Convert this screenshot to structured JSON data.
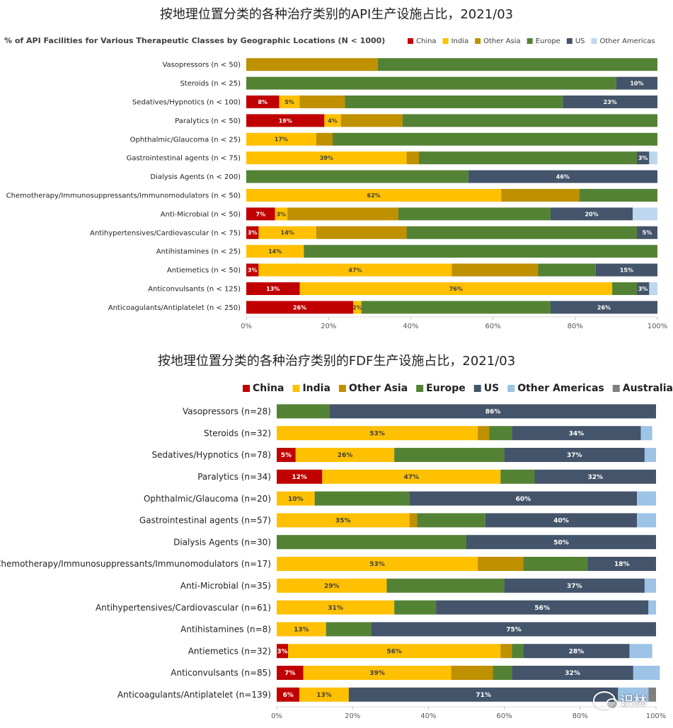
{
  "titles": {
    "api": "按地理位置分类的各种治疗类别的API生产设施占比，2021/03",
    "fdf": "按地理位置分类的各种治疗类别的FDF生产设施占比，2021/03"
  },
  "watermark": {
    "text": "识林"
  },
  "chart_data": [
    {
      "type": "bar",
      "orientation": "horizontal-stacked-100",
      "title": "% of API Facilities for Various Therapeutic Classes by Geographic Locations (N < 1000)",
      "legend_position": "top-right",
      "xlim": [
        0,
        100
      ],
      "x_ticks": [
        "0%",
        "20%",
        "40%",
        "60%",
        "80%",
        "100%"
      ],
      "categories": [
        "Vasopressors (n < 50)",
        "Steroids (n < 25)",
        "Sedatives/Hypnotics (n < 100)",
        "Paralytics (n < 50)",
        "Ophthalmic/Glaucoma (n < 25)",
        "Gastrointestinal agents (n < 75)",
        "Dialysis Agents (n < 200)",
        "Chemotherapy/Immunosuppressants/Immunomodulators (n < 50)",
        "Anti-Microbial (n < 50)",
        "Antihypertensives/Cardiovascular (n < 75)",
        "Antihistamines (n < 25)",
        "Antiemetics (n < 50)",
        "Anticonvulsants (n < 125)",
        "Anticoagulants/Antiplatelet (n < 250)"
      ],
      "series": [
        {
          "name": "China",
          "color": "#C00000",
          "values": [
            0,
            0,
            8,
            19,
            0,
            0,
            0,
            0,
            7,
            3,
            0,
            3,
            13,
            26
          ],
          "labels": [
            "",
            "",
            "8%",
            "19%",
            "",
            "",
            "",
            "",
            "7%",
            "3%",
            "",
            "3%",
            "13%",
            "26%"
          ]
        },
        {
          "name": "India",
          "color": "#FFC000",
          "values": [
            0,
            0,
            5,
            4,
            17,
            39,
            0,
            62,
            3,
            14,
            14,
            47,
            76,
            2
          ],
          "labels": [
            "",
            "",
            "5%",
            "4%",
            "17%",
            "39%",
            "",
            "62%",
            "3%",
            "14%",
            "14%",
            "47%",
            "76%",
            "2%"
          ]
        },
        {
          "name": "Other Asia",
          "color": "#BF9000",
          "values": [
            32,
            0,
            11,
            15,
            4,
            3,
            0,
            19,
            27,
            22,
            0,
            21,
            0,
            0
          ],
          "labels": [
            "",
            "",
            "",
            "",
            "",
            "",
            "",
            "",
            "",
            "",
            "",
            "",
            "",
            ""
          ]
        },
        {
          "name": "Europe",
          "color": "#548235",
          "values": [
            68,
            90,
            53,
            62,
            79,
            53,
            54,
            19,
            37,
            56,
            86,
            14,
            6,
            46
          ],
          "labels": [
            "",
            "",
            "",
            "",
            "",
            "",
            "",
            "",
            "",
            "",
            "",
            "",
            "",
            ""
          ]
        },
        {
          "name": "US",
          "color": "#44546A",
          "values": [
            0,
            10,
            23,
            0,
            0,
            3,
            46,
            0,
            20,
            5,
            0,
            15,
            3,
            26
          ],
          "labels": [
            "",
            "10%",
            "23%",
            "",
            "",
            "3%",
            "46%",
            "",
            "20%",
            "5%",
            "",
            "15%",
            "3%",
            "26%"
          ]
        },
        {
          "name": "Other Americas",
          "color": "#BDD7EE",
          "values": [
            0,
            0,
            0,
            0,
            0,
            2,
            0,
            0,
            6,
            0,
            0,
            0,
            2,
            0
          ],
          "labels": [
            "",
            "",
            "",
            "",
            "",
            "",
            "",
            "",
            "",
            "",
            "",
            "",
            "",
            ""
          ]
        }
      ]
    },
    {
      "type": "bar",
      "orientation": "horizontal-stacked-100",
      "title": "",
      "legend_position": "top",
      "xlim": [
        0,
        100
      ],
      "x_ticks": [
        "0%",
        "20%",
        "40%",
        "60%",
        "80%",
        "100%"
      ],
      "categories": [
        "Vasopressors (n=28)",
        "Steroids (n=32)",
        "Sedatives/Hypnotics (n=78)",
        "Paralytics (n=34)",
        "Ophthalmic/Glaucoma (n=20)",
        "Gastrointestinal agents (n=57)",
        "Dialysis Agents (n=30)",
        "Chemotherapy/Immunosuppressants/Immunomodulators (n=17)",
        "Anti-Microbial (n=35)",
        "Antihypertensives/Cardiovascular (n=61)",
        "Antihistamines (n=8)",
        "Antiemetics (n=32)",
        "Anticonvulsants (n=85)",
        "Anticoagulants/Antiplatelet (n=139)"
      ],
      "series": [
        {
          "name": "China",
          "color": "#C00000",
          "values": [
            0,
            0,
            5,
            12,
            0,
            0,
            0,
            0,
            0,
            0,
            0,
            3,
            7,
            6
          ],
          "labels": [
            "",
            "",
            "5%",
            "12%",
            "",
            "",
            "",
            "",
            "",
            "",
            "",
            "3%",
            "7%",
            "6%"
          ]
        },
        {
          "name": "India",
          "color": "#FFC000",
          "values": [
            0,
            53,
            26,
            47,
            10,
            35,
            0,
            53,
            29,
            31,
            13,
            56,
            39,
            13
          ],
          "labels": [
            "",
            "53%",
            "26%",
            "47%",
            "10%",
            "35%",
            "",
            "53%",
            "29%",
            "31%",
            "13%",
            "56%",
            "39%",
            "13%"
          ]
        },
        {
          "name": "Other Asia",
          "color": "#BF9000",
          "values": [
            0,
            3,
            0,
            0,
            0,
            2,
            0,
            12,
            0,
            0,
            0,
            3,
            11,
            0
          ],
          "labels": [
            "",
            "",
            "",
            "",
            "",
            "",
            "",
            "",
            "",
            "",
            "",
            "",
            "",
            ""
          ]
        },
        {
          "name": "Europe",
          "color": "#548235",
          "values": [
            14,
            6,
            29,
            9,
            25,
            18,
            50,
            17,
            31,
            11,
            12,
            3,
            5,
            0
          ],
          "labels": [
            "",
            "",
            "",
            "",
            "",
            "",
            "",
            "",
            "",
            "",
            "",
            "",
            "",
            ""
          ]
        },
        {
          "name": "US",
          "color": "#44546A",
          "values": [
            86,
            34,
            37,
            32,
            60,
            40,
            50,
            18,
            37,
            56,
            75,
            28,
            32,
            71
          ],
          "labels": [
            "86%",
            "34%",
            "37%",
            "32%",
            "60%",
            "40%",
            "50%",
            "18%",
            "37%",
            "56%",
            "75%",
            "28%",
            "32%",
            "71%"
          ]
        },
        {
          "name": "Other Americas",
          "color": "#9DC3E6",
          "values": [
            0,
            3,
            3,
            0,
            5,
            5,
            0,
            0,
            3,
            2,
            0,
            6,
            7,
            8
          ],
          "labels": [
            "",
            "",
            "",
            "",
            "",
            "",
            "",
            "",
            "",
            "",
            "",
            "",
            "",
            ""
          ]
        },
        {
          "name": "Australia",
          "color": "#7F7F7F",
          "values": [
            0,
            0,
            0,
            0,
            0,
            0,
            0,
            0,
            0,
            0,
            0,
            0,
            0,
            2
          ],
          "labels": [
            "",
            "",
            "",
            "",
            "",
            "",
            "",
            "",
            "",
            "",
            "",
            "",
            "",
            ""
          ]
        }
      ]
    }
  ]
}
